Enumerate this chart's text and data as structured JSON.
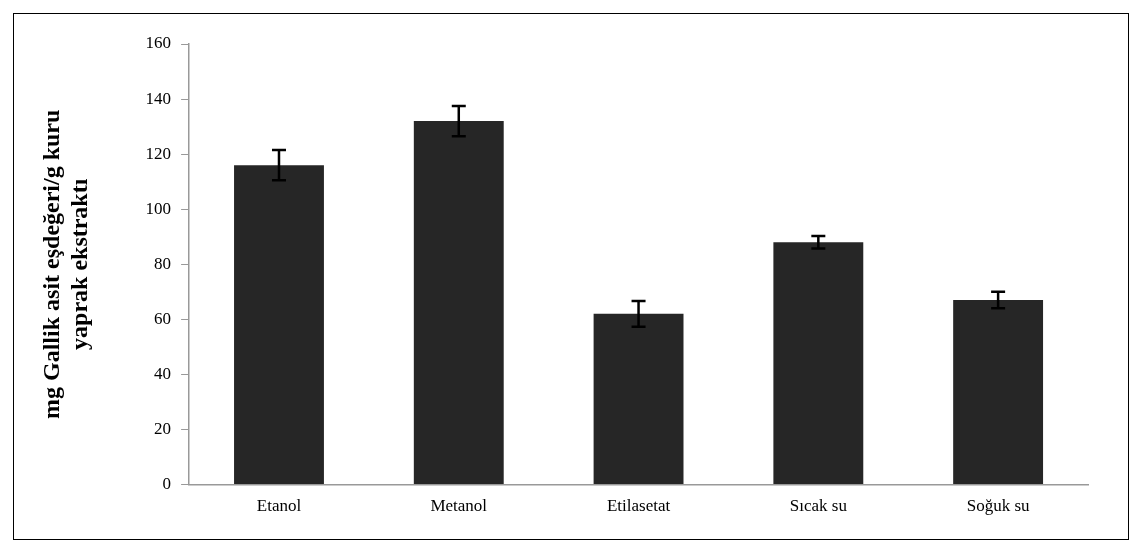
{
  "chart_data": {
    "type": "bar",
    "ylabel": "mg Gallik asit eşdeğeri/g kuru yaprak ekstraktı",
    "categories": [
      "Etanol",
      "Metanol",
      "Etilasetat",
      "Sıcak su",
      "Soğuk su"
    ],
    "values": [
      116,
      132,
      62,
      88,
      67
    ],
    "errors": [
      5.5,
      5.5,
      4.7,
      2.3,
      3
    ],
    "color": "#262626",
    "ylim": [
      0,
      160
    ],
    "yticks": [
      0,
      20,
      40,
      60,
      80,
      100,
      120,
      140,
      160
    ],
    "grid": false,
    "legend": false
  }
}
